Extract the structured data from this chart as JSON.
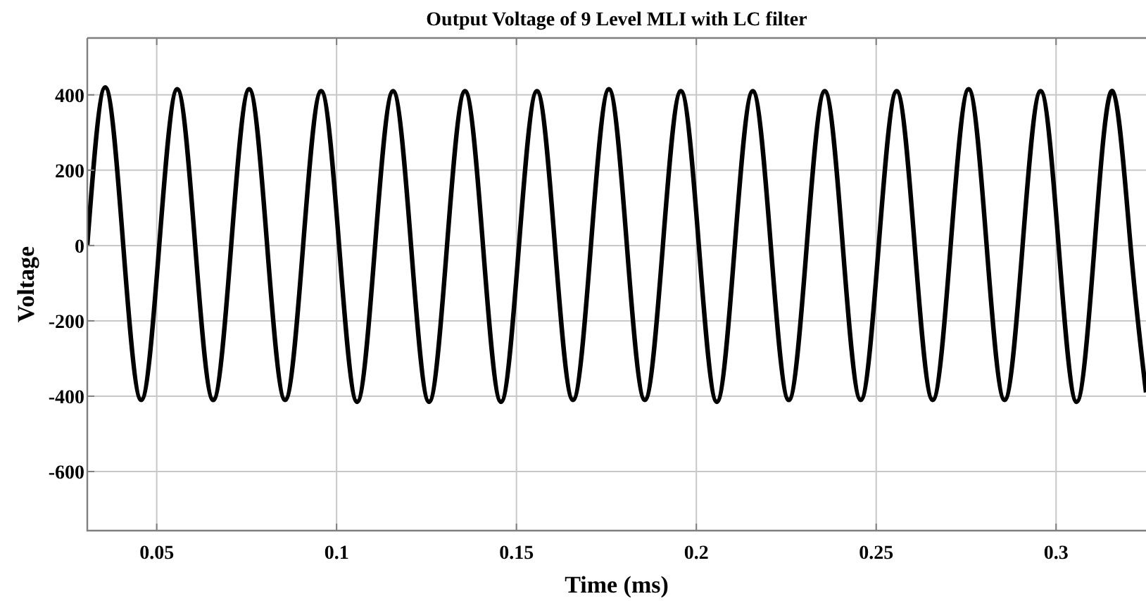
{
  "chart_data": {
    "type": "line",
    "title": "Output Voltage of 9 Level MLI with LC filter",
    "xlabel": "Time (ms)",
    "ylabel": "Voltage",
    "xlim": [
      0.0307,
      0.325
    ],
    "ylim": [
      -757,
      551
    ],
    "xticks": [
      0.05,
      0.1,
      0.15,
      0.2,
      0.25,
      0.3
    ],
    "yticks": [
      -600,
      -400,
      -200,
      0,
      200,
      400
    ],
    "grid": true,
    "marker": "none",
    "line_style": "solid",
    "series": [
      {
        "color": "#000000",
        "x": [
          0.0307,
          0.0357,
          0.0407,
          0.0457,
          0.0507,
          0.0557,
          0.0607,
          0.0657,
          0.0707,
          0.0757,
          0.0807,
          0.0857,
          0.0907,
          0.0957,
          0.1007,
          0.1057,
          0.1107,
          0.1157,
          0.1207,
          0.1257,
          0.1307,
          0.1357,
          0.1407,
          0.1457,
          0.1507,
          0.1557,
          0.1607,
          0.1657,
          0.1707,
          0.1757,
          0.1807,
          0.1857,
          0.1907,
          0.1957,
          0.2007,
          0.2057,
          0.2107,
          0.2157,
          0.2207,
          0.2257,
          0.2307,
          0.2357,
          0.2407,
          0.2457,
          0.2507,
          0.2557,
          0.2607,
          0.2657,
          0.2707,
          0.2757,
          0.2807,
          0.2857,
          0.2907,
          0.2957,
          0.3007,
          0.3057,
          0.3107,
          0.3157,
          0.3207,
          0.325
        ],
        "values": [
          0,
          420,
          0,
          -410,
          0,
          415,
          0,
          -410,
          0,
          415,
          0,
          -410,
          0,
          410,
          0,
          -415,
          0,
          410,
          0,
          -415,
          0,
          410,
          0,
          -415,
          0,
          410,
          0,
          -410,
          0,
          415,
          0,
          -410,
          0,
          410,
          0,
          -415,
          0,
          410,
          0,
          -410,
          0,
          410,
          0,
          -410,
          0,
          410,
          0,
          -410,
          0,
          415,
          0,
          -410,
          0,
          410,
          0,
          -415,
          0,
          410,
          0,
          -390
        ]
      }
    ]
  }
}
